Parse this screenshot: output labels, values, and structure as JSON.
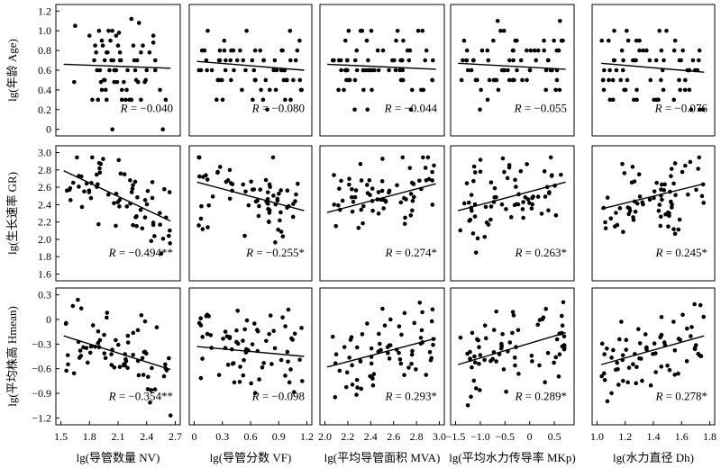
{
  "chart_data": {
    "type": "scatter",
    "grid": false,
    "rows": [
      {
        "ylabel": "lg(年龄 Age)",
        "ylim": [
          0,
          1.2
        ],
        "yticks": [
          "0",
          "0.2",
          "0.4",
          "0.6",
          "0.8",
          "1.0",
          "1.2"
        ],
        "ytick_values": [
          0,
          0.2,
          0.4,
          0.6,
          0.8,
          1.0,
          1.2
        ]
      },
      {
        "ylabel": "lg(生长速率 GR)",
        "ylim": [
          1.6,
          3.0
        ],
        "yticks": [
          "1.6",
          "1.8",
          "2.0",
          "2.2",
          "2.4",
          "2.6",
          "2.8",
          "3.0"
        ],
        "ytick_values": [
          1.6,
          1.8,
          2.0,
          2.2,
          2.4,
          2.6,
          2.8,
          3.0
        ]
      },
      {
        "ylabel": "lg(平均株高 Hmean)",
        "ylim": [
          -1.2,
          0.3
        ],
        "yticks": [
          "-1.2",
          "-0.9",
          "-0.6",
          "-0.3",
          "0",
          "0.3"
        ],
        "ytick_values": [
          -1.2,
          -0.9,
          -0.6,
          -0.3,
          0,
          0.3
        ]
      }
    ],
    "columns": [
      {
        "xlabel": "lg(导管数量 NV)",
        "xlim": [
          1.5,
          2.7
        ],
        "xticks": [
          "1.5",
          "1.8",
          "2.1",
          "2.4",
          "2.7"
        ],
        "xtick_values": [
          1.5,
          1.8,
          2.1,
          2.4,
          2.7
        ]
      },
      {
        "xlabel": "lg(导管分数 VF)",
        "xlim": [
          0,
          1.2
        ],
        "xticks": [
          "0",
          "0.3",
          "0.6",
          "0.9",
          "1.2"
        ],
        "xtick_values": [
          0,
          0.3,
          0.6,
          0.9,
          1.2
        ]
      },
      {
        "xlabel": "lg(平均导管面积 MVA)",
        "xlim": [
          2.0,
          3.0
        ],
        "xticks": [
          "2.0",
          "2.2",
          "2.4",
          "2.6",
          "2.8",
          "3.0"
        ],
        "xtick_values": [
          2.0,
          2.2,
          2.4,
          2.6,
          2.8,
          3.0
        ]
      },
      {
        "xlabel": "lg(平均水力传导率 MKp)",
        "xlim": [
          -1.5,
          0.8
        ],
        "xticks": [
          "-1.5",
          "-1.0",
          "-0.5",
          "0",
          "0.5"
        ],
        "xtick_values": [
          -1.5,
          -1.0,
          -0.5,
          0,
          0.5
        ]
      },
      {
        "xlabel": "lg(水力直径 Dh)",
        "xlim": [
          1.0,
          1.8
        ],
        "xticks": [
          "1.0",
          "1.2",
          "1.4",
          "1.6",
          "1.8"
        ],
        "xtick_values": [
          1.0,
          1.2,
          1.4,
          1.6,
          1.8
        ]
      }
    ],
    "panels": [
      {
        "row": 0,
        "col": 0,
        "r_label": "R = −0.040",
        "fit": [
          [
            1.53,
            0.66
          ],
          [
            2.65,
            0.62
          ]
        ]
      },
      {
        "row": 0,
        "col": 1,
        "r_label": "R = −0.080",
        "fit": [
          [
            0.03,
            0.69
          ],
          [
            1.17,
            0.6
          ]
        ]
      },
      {
        "row": 0,
        "col": 2,
        "r_label": "R = −0.044",
        "fit": [
          [
            2.02,
            0.66
          ],
          [
            2.97,
            0.61
          ]
        ]
      },
      {
        "row": 0,
        "col": 3,
        "r_label": "R = −0.055",
        "fit": [
          [
            -1.45,
            0.67
          ],
          [
            0.73,
            0.61
          ]
        ]
      },
      {
        "row": 0,
        "col": 4,
        "r_label": "R = −0.076",
        "fit": [
          [
            1.03,
            0.67
          ],
          [
            1.76,
            0.58
          ]
        ]
      },
      {
        "row": 1,
        "col": 0,
        "r_label": "R = −0.494**",
        "fit": [
          [
            1.53,
            2.79
          ],
          [
            2.65,
            2.21
          ]
        ]
      },
      {
        "row": 1,
        "col": 1,
        "r_label": "R = −0.255*",
        "fit": [
          [
            0.03,
            2.66
          ],
          [
            1.17,
            2.33
          ]
        ]
      },
      {
        "row": 1,
        "col": 2,
        "r_label": "R = 0.274*",
        "fit": [
          [
            2.02,
            2.31
          ],
          [
            2.97,
            2.64
          ]
        ]
      },
      {
        "row": 1,
        "col": 3,
        "r_label": "R = 0.263*",
        "fit": [
          [
            -1.45,
            2.33
          ],
          [
            0.73,
            2.66
          ]
        ]
      },
      {
        "row": 1,
        "col": 4,
        "r_label": "R = 0.245*",
        "fit": [
          [
            1.03,
            2.35
          ],
          [
            1.76,
            2.64
          ]
        ]
      },
      {
        "row": 2,
        "col": 0,
        "r_label": "R = −0.354**",
        "fit": [
          [
            1.53,
            -0.2
          ],
          [
            2.65,
            -0.61
          ]
        ]
      },
      {
        "row": 2,
        "col": 1,
        "r_label": "R = −0.098",
        "fit": [
          [
            0.03,
            -0.33
          ],
          [
            1.17,
            -0.45
          ]
        ]
      },
      {
        "row": 2,
        "col": 2,
        "r_label": "R = 0.293*",
        "fit": [
          [
            2.02,
            -0.58
          ],
          [
            2.97,
            -0.23
          ]
        ]
      },
      {
        "row": 2,
        "col": 3,
        "r_label": "R = 0.289*",
        "fit": [
          [
            -1.45,
            -0.55
          ],
          [
            0.73,
            -0.16
          ]
        ]
      },
      {
        "row": 2,
        "col": 4,
        "r_label": "R = 0.278*",
        "fit": [
          [
            1.03,
            -0.55
          ],
          [
            1.76,
            -0.2
          ]
        ]
      }
    ],
    "points": [
      [
        1.93,
        0.9
      ],
      [
        2.0,
        1.0
      ],
      [
        1.95,
        0.5
      ],
      [
        1.9,
        1.0
      ],
      [
        1.98,
        0.3
      ],
      [
        2.05,
        0.7
      ],
      [
        1.85,
        0.7
      ],
      [
        2.4,
        0.6
      ],
      [
        1.92,
        0.48
      ],
      [
        2.1,
        0.85
      ],
      [
        2.08,
        0.6
      ],
      [
        2.24,
        0.3
      ],
      [
        1.87,
        0.78
      ],
      [
        1.65,
        1.05
      ],
      [
        2.47,
        0.88
      ],
      [
        2.06,
        0.6
      ],
      [
        2.38,
        0.48
      ],
      [
        1.93,
        0.4
      ],
      [
        2.3,
        0.7
      ],
      [
        1.96,
        0.5
      ],
      [
        2.12,
        0.78
      ],
      [
        2.32,
        1.08
      ],
      [
        2.07,
        0.6
      ],
      [
        1.89,
        0.3
      ],
      [
        2.27,
        0.7
      ],
      [
        1.97,
        0.4
      ],
      [
        1.94,
        0.85
      ],
      [
        2.09,
        0.48
      ],
      [
        2.47,
        0.95
      ],
      [
        2.03,
        0.7
      ],
      [
        1.8,
        0.95
      ],
      [
        1.88,
        0.6
      ],
      [
        2.16,
        0.48
      ],
      [
        2.28,
        0.6
      ],
      [
        1.99,
        0.78
      ],
      [
        2.14,
        0.4
      ],
      [
        2.43,
        0.78
      ],
      [
        2.22,
        0.3
      ],
      [
        2.06,
        0.48
      ],
      [
        2.26,
        0.85
      ],
      [
        1.91,
        0.6
      ],
      [
        1.83,
        0.3
      ],
      [
        2.04,
        1.0
      ],
      [
        2.29,
        0.5
      ],
      [
        2.49,
        0.6
      ],
      [
        1.96,
        0.7
      ],
      [
        2.34,
        0.3
      ],
      [
        2.08,
        0.95
      ],
      [
        2.2,
        0.6
      ],
      [
        2.02,
        0.9
      ],
      [
        2.24,
        1.12
      ],
      [
        2.54,
        0.4
      ],
      [
        2.13,
        0.7
      ],
      [
        2.36,
        0.85
      ],
      [
        1.98,
        0.78
      ],
      [
        2.31,
        0.48
      ],
      [
        2.18,
        0.3
      ],
      [
        1.86,
        0.85
      ],
      [
        2.34,
        0.78
      ],
      [
        2.01,
        0.6
      ],
      [
        2.49,
        0.7
      ],
      [
        2.6,
        0.3
      ],
      [
        2.11,
        0.98
      ],
      [
        2.19,
        0.4
      ],
      [
        2.39,
        0.5
      ],
      [
        1.64,
        0.48
      ],
      [
        2.57,
        0.0
      ],
      [
        2.14,
        0.3
      ],
      [
        2.12,
        0.7
      ],
      [
        2.04,
        0.0
      ]
    ]
  }
}
